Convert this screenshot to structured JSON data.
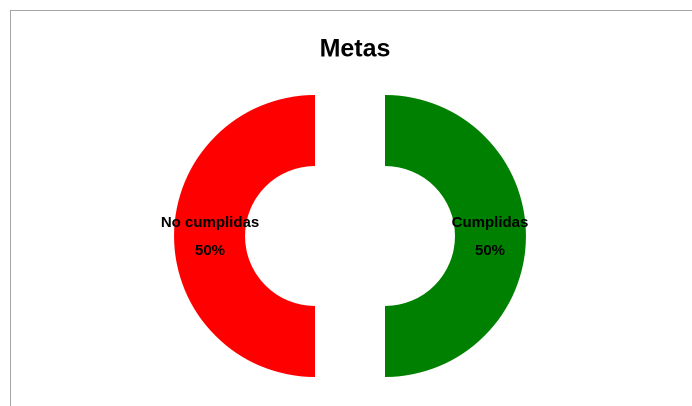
{
  "chart_data": {
    "type": "doughnut",
    "title": "Metas",
    "categories": [
      "Cumplidas",
      "No cumplidas"
    ],
    "values": [
      50,
      50
    ],
    "value_labels": [
      "50%",
      "50%"
    ],
    "colors": [
      "#008000",
      "#ff0000"
    ]
  }
}
